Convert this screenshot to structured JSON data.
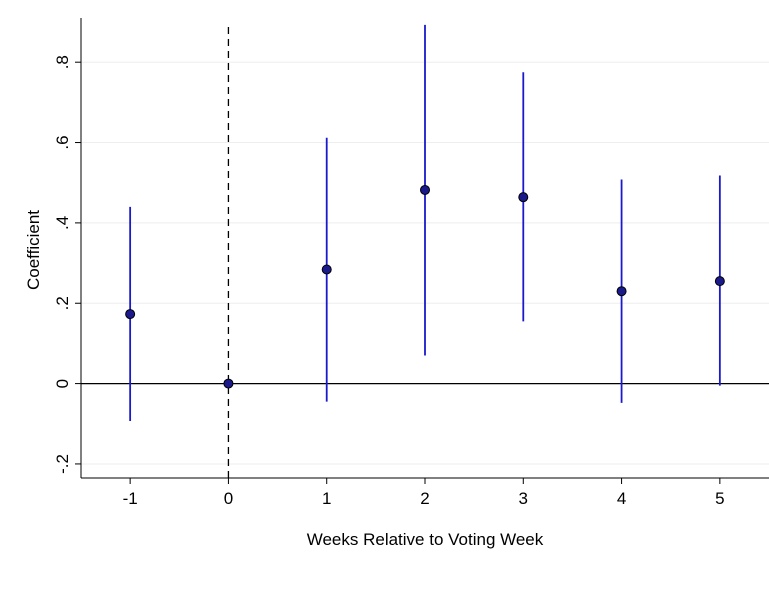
{
  "chart_data": {
    "type": "scatter",
    "title": "",
    "xlabel": "Weeks Relative to Voting Week",
    "ylabel": "Coefficient",
    "xlim": [
      -1.5,
      5.5
    ],
    "ylim": [
      -0.235,
      0.91
    ],
    "x_ticks": [
      -1,
      0,
      1,
      2,
      3,
      4,
      5
    ],
    "x_tick_labels": [
      "-1",
      "0",
      "1",
      "2",
      "3",
      "4",
      "5"
    ],
    "y_ticks": [
      -0.2,
      0,
      0.2,
      0.4,
      0.6,
      0.8
    ],
    "y_tick_labels": [
      "-.2",
      "0",
      ".2",
      ".4",
      ".6",
      ".8"
    ],
    "grid": "horizontal",
    "reference_lines": [
      {
        "axis": "y",
        "value": 0,
        "style": "solid"
      },
      {
        "axis": "x",
        "value": 0,
        "style": "dashed"
      }
    ],
    "series": [
      {
        "x": [
          -1,
          0,
          1,
          2,
          3,
          4,
          5
        ],
        "values": [
          0.173,
          0.0,
          0.284,
          0.482,
          0.464,
          0.23,
          0.255
        ],
        "ci_low": [
          -0.093,
          0.0,
          -0.045,
          0.07,
          0.155,
          -0.048,
          -0.005
        ],
        "ci_high": [
          0.44,
          0.0,
          0.612,
          0.893,
          0.775,
          0.508,
          0.518
        ]
      }
    ],
    "colors": {
      "ci": "#1a1acc",
      "marker_fill": "#1a1a8c",
      "marker_edge": "#000000",
      "grid": "#eeeeee"
    }
  }
}
